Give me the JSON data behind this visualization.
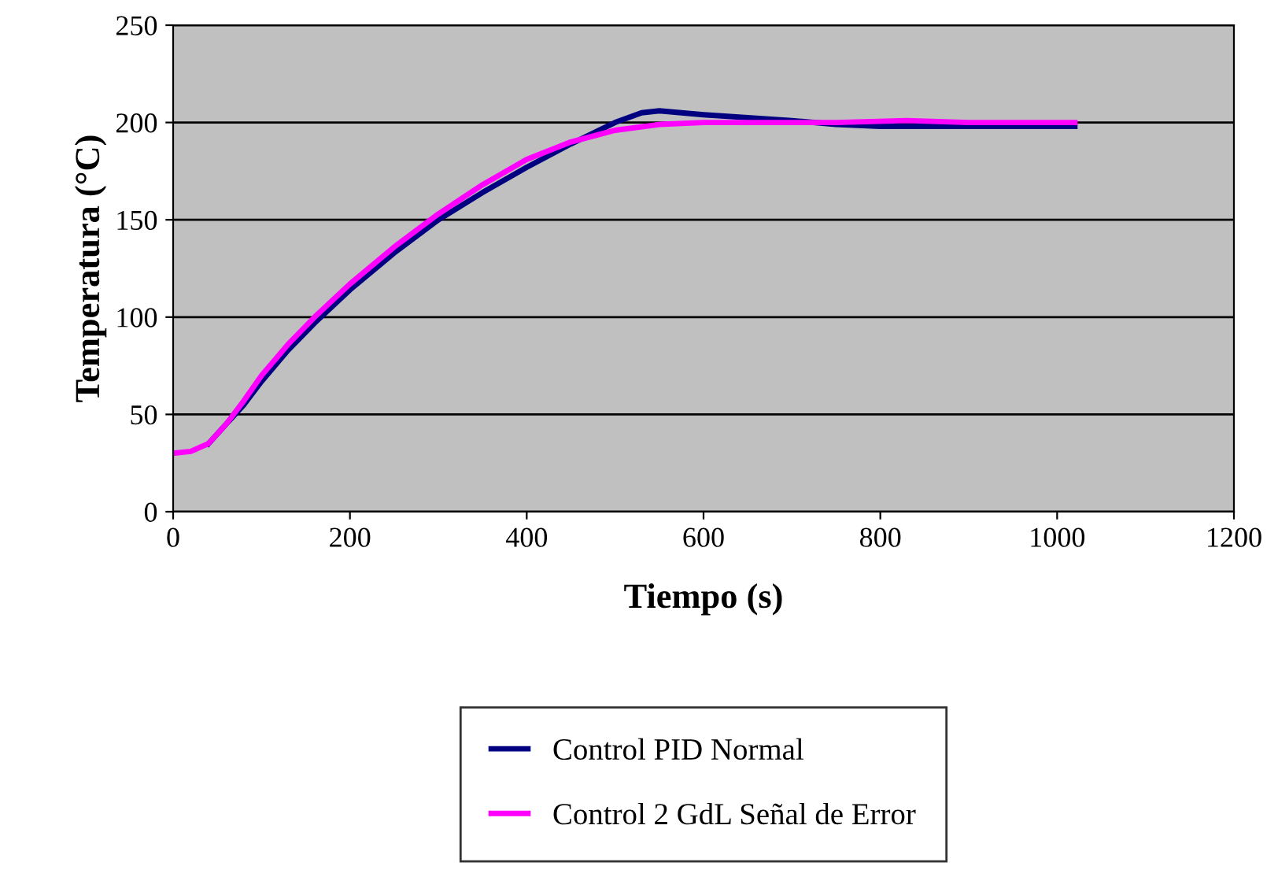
{
  "chart_data": {
    "type": "line",
    "xlabel": "Tiempo (s)",
    "ylabel": "Temperatura (°C)",
    "xlim": [
      0,
      1200
    ],
    "xticks": [
      0,
      200,
      400,
      600,
      800,
      1000,
      1200
    ],
    "ylim": [
      0,
      250
    ],
    "yticks": [
      0,
      50,
      100,
      150,
      200,
      250
    ],
    "grid": "y",
    "legend": "bottom",
    "marker": "none",
    "line_style": "solid",
    "series": [
      {
        "name": "Control PID Normal",
        "color": "#000080",
        "x": [
          40,
          60,
          80,
          100,
          130,
          160,
          200,
          250,
          300,
          350,
          400,
          450,
          500,
          530,
          550,
          600,
          700,
          750,
          800,
          900,
          1020
        ],
        "values": [
          35,
          45,
          55,
          67,
          83,
          97,
          114,
          133,
          150,
          164,
          177,
          189,
          200,
          205,
          206,
          204,
          201,
          199,
          198,
          198,
          198
        ]
      },
      {
        "name": "Control 2 GdL Señal de Error",
        "color": "#ff00ff",
        "x": [
          0,
          20,
          40,
          60,
          80,
          100,
          130,
          160,
          200,
          250,
          300,
          350,
          400,
          450,
          500,
          550,
          600,
          700,
          750,
          830,
          900,
          1020
        ],
        "values": [
          30,
          31,
          35,
          45,
          57,
          70,
          86,
          100,
          117,
          136,
          153,
          168,
          181,
          190,
          196,
          199,
          200,
          200,
          200,
          201,
          200,
          200
        ]
      }
    ]
  }
}
